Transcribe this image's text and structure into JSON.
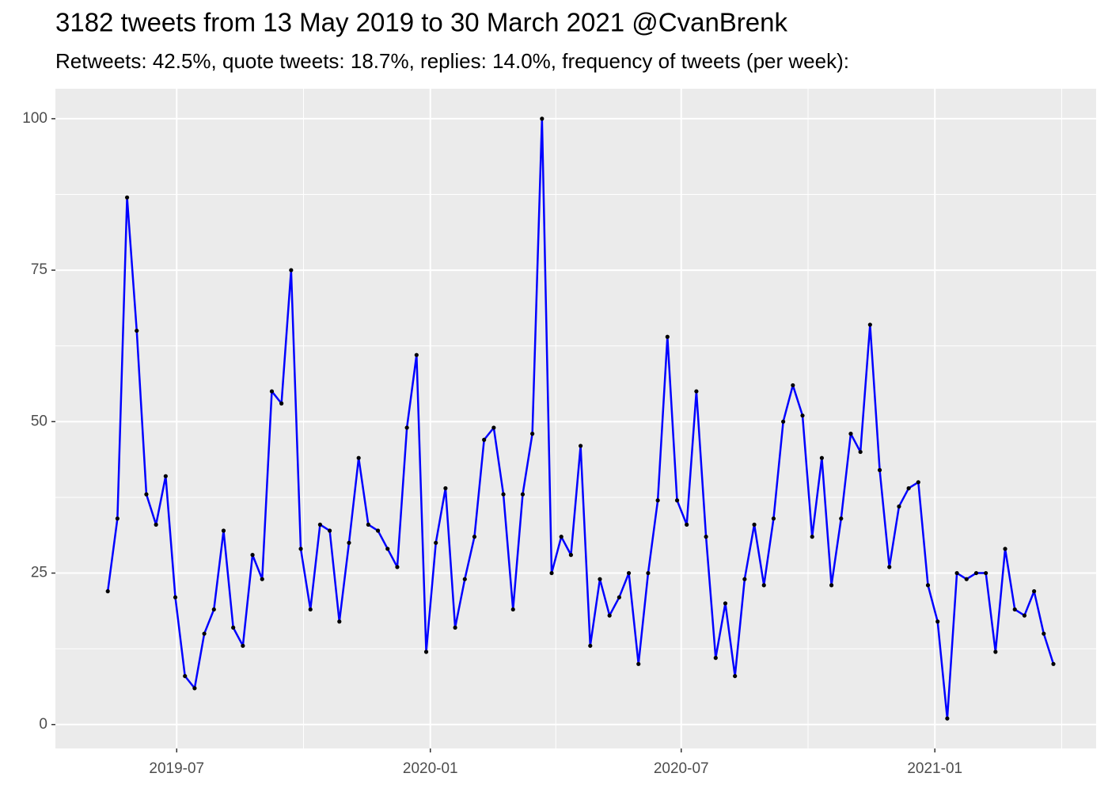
{
  "chart_data": {
    "type": "line",
    "title": "3182 tweets from 13 May 2019 to 30 March 2021 @CvanBrenk",
    "subtitle": "Retweets: 42.5%, quote tweets: 18.7%, replies: 14.0%, frequency of tweets (per week):",
    "x": [
      "2019-05-12",
      "2019-05-19",
      "2019-05-26",
      "2019-06-02",
      "2019-06-09",
      "2019-06-16",
      "2019-06-23",
      "2019-06-30",
      "2019-07-07",
      "2019-07-14",
      "2019-07-21",
      "2019-07-28",
      "2019-08-04",
      "2019-08-11",
      "2019-08-18",
      "2019-08-25",
      "2019-09-01",
      "2019-09-08",
      "2019-09-15",
      "2019-09-22",
      "2019-09-29",
      "2019-10-06",
      "2019-10-13",
      "2019-10-20",
      "2019-10-27",
      "2019-11-03",
      "2019-11-10",
      "2019-11-17",
      "2019-11-24",
      "2019-12-01",
      "2019-12-08",
      "2019-12-15",
      "2019-12-22",
      "2019-12-29",
      "2020-01-05",
      "2020-01-12",
      "2020-01-19",
      "2020-01-26",
      "2020-02-02",
      "2020-02-09",
      "2020-02-16",
      "2020-02-23",
      "2020-03-01",
      "2020-03-08",
      "2020-03-15",
      "2020-03-22",
      "2020-03-29",
      "2020-04-05",
      "2020-04-12",
      "2020-04-19",
      "2020-04-26",
      "2020-05-03",
      "2020-05-10",
      "2020-05-17",
      "2020-05-24",
      "2020-05-31",
      "2020-06-07",
      "2020-06-14",
      "2020-06-21",
      "2020-06-28",
      "2020-07-05",
      "2020-07-12",
      "2020-07-19",
      "2020-07-26",
      "2020-08-02",
      "2020-08-09",
      "2020-08-16",
      "2020-08-23",
      "2020-08-30",
      "2020-09-06",
      "2020-09-13",
      "2020-09-20",
      "2020-09-27",
      "2020-10-04",
      "2020-10-11",
      "2020-10-18",
      "2020-10-25",
      "2020-11-01",
      "2020-11-08",
      "2020-11-15",
      "2020-11-22",
      "2020-11-29",
      "2020-12-06",
      "2020-12-13",
      "2020-12-20",
      "2020-12-27",
      "2021-01-03",
      "2021-01-10",
      "2021-01-17",
      "2021-01-24",
      "2021-01-31",
      "2021-02-07",
      "2021-02-14",
      "2021-02-21",
      "2021-02-28",
      "2021-03-07",
      "2021-03-14",
      "2021-03-21",
      "2021-03-28"
    ],
    "values": [
      22,
      34,
      87,
      65,
      38,
      33,
      41,
      21,
      8,
      6,
      15,
      19,
      32,
      16,
      13,
      28,
      24,
      55,
      53,
      75,
      29,
      19,
      33,
      32,
      17,
      30,
      44,
      33,
      32,
      29,
      26,
      49,
      61,
      12,
      30,
      39,
      16,
      24,
      31,
      47,
      49,
      38,
      19,
      38,
      48,
      100,
      25,
      31,
      28,
      46,
      13,
      24,
      18,
      21,
      25,
      10,
      25,
      37,
      64,
      37,
      33,
      55,
      31,
      11,
      20,
      8,
      24,
      33,
      23,
      34,
      50,
      56,
      51,
      31,
      44,
      23,
      34,
      48,
      45,
      66,
      42,
      26,
      36,
      39,
      40,
      23,
      17,
      1,
      25,
      24,
      25,
      25,
      12,
      29,
      19,
      18,
      22,
      15,
      10
    ],
    "color": "#0000ff",
    "point_color": "#000000",
    "xlim": [
      "2019-04-04",
      "2021-04-28"
    ],
    "xticks": [
      {
        "value": "2019-07-01",
        "label": "2019-07"
      },
      {
        "value": "2020-01-01",
        "label": "2020-01"
      },
      {
        "value": "2020-07-01",
        "label": "2020-07"
      },
      {
        "value": "2021-01-01",
        "label": "2021-01"
      }
    ],
    "ylim": [
      -3.95,
      104.95
    ],
    "yticks": [
      0,
      25,
      50,
      75,
      100
    ],
    "grid": true
  }
}
